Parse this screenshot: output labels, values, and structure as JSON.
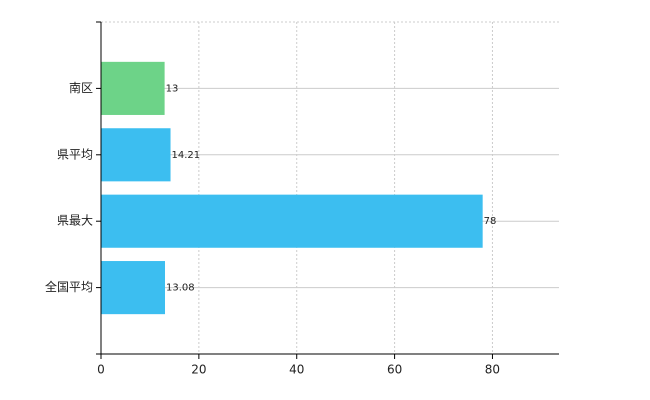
{
  "chart_data": {
    "type": "hbar",
    "categories": [
      "南区",
      "県平均",
      "県最大",
      "全国平均"
    ],
    "values": [
      13,
      14.21,
      78,
      13.08
    ],
    "colors": [
      "#6dd388",
      "#3cbef0",
      "#3cbef0",
      "#3cbef0"
    ],
    "xlim": [
      0,
      93.6
    ],
    "xticks": [
      0,
      20,
      40,
      60,
      80
    ],
    "grid": true
  }
}
